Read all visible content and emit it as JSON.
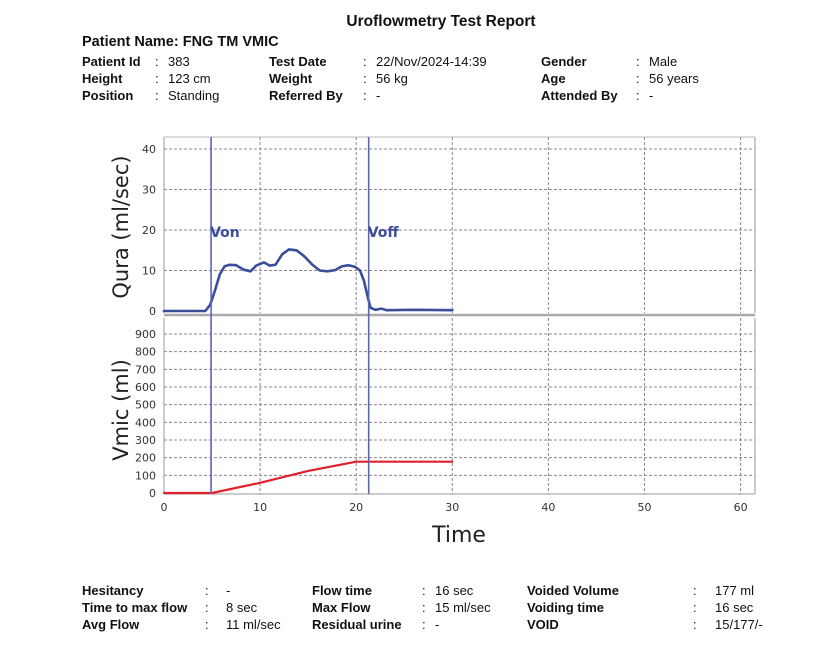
{
  "title": "Uroflowmetry Test Report",
  "patient_name": "Patient Name: FNG TM VMIC",
  "header_fields": [
    [
      {
        "label": "Patient Id",
        "value": "383"
      },
      {
        "label": "Test Date",
        "value": "22/Nov/2024-14:39"
      },
      {
        "label": "Gender",
        "value": "Male"
      }
    ],
    [
      {
        "label": "Height",
        "value": "123 cm"
      },
      {
        "label": "Weight",
        "value": "56 kg"
      },
      {
        "label": "Age",
        "value": "56 years"
      }
    ],
    [
      {
        "label": "Position",
        "value": "Standing"
      },
      {
        "label": "Referred By",
        "value": "-"
      },
      {
        "label": "Attended By",
        "value": "-"
      }
    ]
  ],
  "footer_fields": [
    [
      {
        "label": "Hesitancy",
        "value": "-"
      },
      {
        "label": "Flow time",
        "value": "16 sec"
      },
      {
        "label": "Voided Volume",
        "value": "177 ml"
      }
    ],
    [
      {
        "label": "Time to max flow",
        "value": "8 sec"
      },
      {
        "label": "Max Flow",
        "value": "15 ml/sec"
      },
      {
        "label": "Voiding time",
        "value": "16 sec"
      }
    ],
    [
      {
        "label": "Avg Flow",
        "value": "11 ml/sec"
      },
      {
        "label": "Residual urine",
        "value": "-"
      },
      {
        "label": "VOID",
        "value": "15/177/-"
      }
    ]
  ],
  "colors": {
    "flow": "#3a4e9a",
    "volume": "#e0202a",
    "marker": "#5a64b8",
    "grid": "#888888"
  },
  "chart_data": {
    "type": "line",
    "xlabel": "Time",
    "xlim": [
      0,
      61.5
    ],
    "xticks": [
      "0",
      "10",
      "20",
      "30",
      "40",
      "50",
      "60"
    ],
    "grid": true,
    "markers": [
      {
        "label": "Von",
        "x": 4.9
      },
      {
        "label": "Voff",
        "x": 21.3
      }
    ],
    "panels": [
      {
        "name": "flow",
        "ylabel": "Qura (ml/sec)",
        "ylim": [
          0,
          43
        ],
        "yticks": [
          "0",
          "10",
          "20",
          "30",
          "40"
        ],
        "series": {
          "name": "Qura",
          "x": [
            0,
            4.3,
            4.8,
            5.3,
            5.8,
            6.3,
            6.8,
            7.5,
            8.3,
            9.0,
            9.6,
            10.4,
            11.0,
            11.6,
            12.3,
            13.0,
            13.8,
            14.6,
            15.4,
            16.2,
            17.0,
            17.8,
            18.5,
            19.2,
            19.9,
            20.4,
            20.8,
            21.2,
            21.5,
            22.0,
            22.6,
            23.2,
            26.0,
            30.0
          ],
          "y": [
            0,
            0,
            1.5,
            5,
            9,
            11,
            11.4,
            11.3,
            10.2,
            9.8,
            11.2,
            12,
            11.2,
            11.4,
            14,
            15.2,
            15.0,
            13.5,
            11.5,
            10.0,
            9.8,
            10.1,
            11.0,
            11.3,
            10.9,
            10.0,
            7.5,
            3.5,
            0.8,
            0.3,
            0.6,
            0.2,
            0.3,
            0.2
          ]
        }
      },
      {
        "name": "volume",
        "ylabel": "Vmic (ml)",
        "ylim": [
          0,
          1000
        ],
        "yticks": [
          "0",
          "100",
          "200",
          "300",
          "400",
          "500",
          "600",
          "700",
          "800",
          "900"
        ],
        "series": {
          "name": "Vmic",
          "x": [
            0,
            5.0,
            10,
            15,
            20,
            30
          ],
          "y": [
            0,
            0,
            58,
            125,
            177,
            177
          ]
        }
      }
    ]
  }
}
